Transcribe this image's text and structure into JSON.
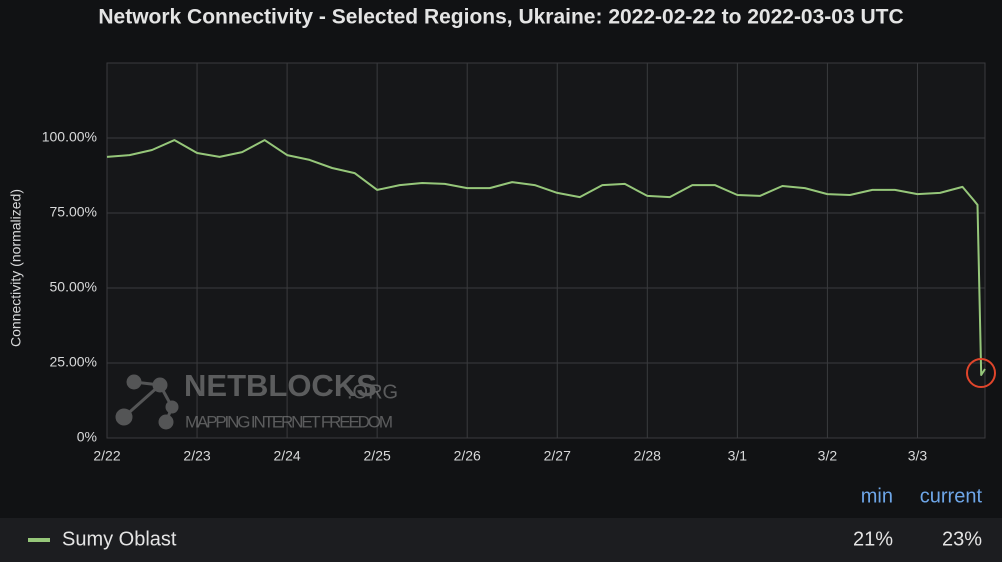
{
  "chart_data": {
    "type": "area",
    "title": "Network Connectivity - Selected Regions, Ukraine: 2022-02-22 to 2022-03-03 UTC",
    "y_label": "Connectivity (normalized)",
    "watermark": {
      "name": "NETBLOCKS",
      "suffix": ".ORG",
      "tagline": "MAPPING INTERNET FREEDOM"
    },
    "x": [
      "2022-02-22T00:00:00Z",
      "2022-02-22T06:00:00Z",
      "2022-02-22T12:00:00Z",
      "2022-02-22T18:00:00Z",
      "2022-02-23T00:00:00Z",
      "2022-02-23T06:00:00Z",
      "2022-02-23T12:00:00Z",
      "2022-02-23T18:00:00Z",
      "2022-02-24T00:00:00Z",
      "2022-02-24T06:00:00Z",
      "2022-02-24T12:00:00Z",
      "2022-02-24T18:00:00Z",
      "2022-02-25T00:00:00Z",
      "2022-02-25T06:00:00Z",
      "2022-02-25T12:00:00Z",
      "2022-02-25T18:00:00Z",
      "2022-02-26T00:00:00Z",
      "2022-02-26T06:00:00Z",
      "2022-02-26T12:00:00Z",
      "2022-02-26T18:00:00Z",
      "2022-02-27T00:00:00Z",
      "2022-02-27T06:00:00Z",
      "2022-02-27T12:00:00Z",
      "2022-02-27T18:00:00Z",
      "2022-02-28T00:00:00Z",
      "2022-02-28T06:00:00Z",
      "2022-02-28T12:00:00Z",
      "2022-02-28T18:00:00Z",
      "2022-03-01T00:00:00Z",
      "2022-03-01T06:00:00Z",
      "2022-03-01T12:00:00Z",
      "2022-03-01T18:00:00Z",
      "2022-03-02T00:00:00Z",
      "2022-03-02T06:00:00Z",
      "2022-03-02T12:00:00Z",
      "2022-03-02T18:00:00Z",
      "2022-03-03T00:00:00Z",
      "2022-03-03T06:00:00Z",
      "2022-03-03T12:00:00Z",
      "2022-03-03T15:00:00Z",
      "2022-03-03T16:00:00Z",
      "2022-03-03T17:00:00Z",
      "2022-03-03T18:00:00Z"
    ],
    "series": [
      {
        "name": "Sumy Oblast",
        "color": "#96c77a",
        "fill": "#2e3d2a",
        "values": [
          93.7,
          94.3,
          96,
          99.3,
          95,
          93.7,
          95.3,
          99.3,
          94.3,
          92.7,
          90,
          88.3,
          82.7,
          84.3,
          85,
          84.7,
          83.3,
          83.3,
          85.3,
          84.3,
          81.7,
          80.3,
          84.3,
          84.7,
          80.7,
          80.3,
          84.3,
          84.3,
          81,
          80.7,
          84,
          83.3,
          81.3,
          81,
          82.7,
          82.7,
          81.3,
          81.7,
          83.7,
          79.3,
          77.7,
          21,
          23
        ],
        "stats": [
          {
            "name": "min",
            "value": 21,
            "label": "21%"
          },
          {
            "name": "current",
            "value": 23,
            "label": "23%"
          }
        ]
      }
    ],
    "xlim": [
      "2022-02-22T00:00:00Z",
      "2022-03-03T18:00:00Z"
    ],
    "xticks": [
      {
        "value": "2022-02-22T00:00:00Z",
        "label": "2/22"
      },
      {
        "value": "2022-02-23T00:00:00Z",
        "label": "2/23"
      },
      {
        "value": "2022-02-24T00:00:00Z",
        "label": "2/24"
      },
      {
        "value": "2022-02-25T00:00:00Z",
        "label": "2/25"
      },
      {
        "value": "2022-02-26T00:00:00Z",
        "label": "2/26"
      },
      {
        "value": "2022-02-27T00:00:00Z",
        "label": "2/27"
      },
      {
        "value": "2022-02-28T00:00:00Z",
        "label": "2/28"
      },
      {
        "value": "2022-03-01T00:00:00Z",
        "label": "3/1"
      },
      {
        "value": "2022-03-02T00:00:00Z",
        "label": "3/2"
      },
      {
        "value": "2022-03-03T00:00:00Z",
        "label": "3/3"
      }
    ],
    "ylim": [
      0,
      125
    ],
    "yticks": [
      {
        "value": 0,
        "label": "0%"
      },
      {
        "value": 25,
        "label": "25.00%"
      },
      {
        "value": 50,
        "label": "50.00%"
      },
      {
        "value": 75,
        "label": "75.00%"
      },
      {
        "value": 100,
        "label": "100.00%"
      }
    ],
    "grid": true
  }
}
